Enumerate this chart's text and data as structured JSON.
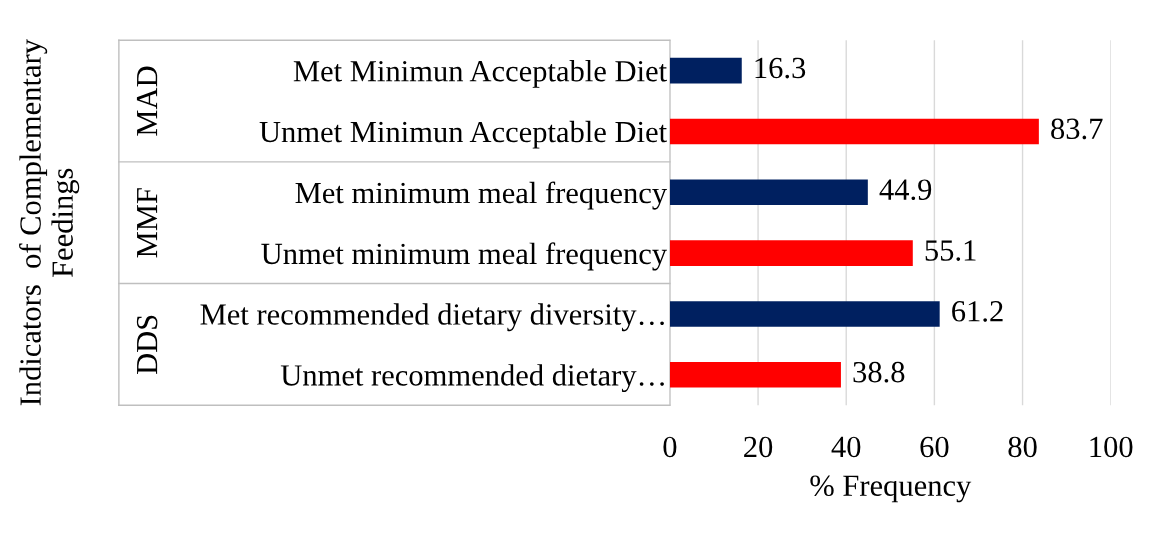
{
  "chart_data": {
    "type": "bar",
    "orientation": "horizontal",
    "xlabel": "% Frequency",
    "ylabel": "Indicators  of Complementary\nFeedings",
    "categories": [
      "Met Minimun Acceptable Diet",
      "Unmet Minimun Acceptable Diet",
      "Met minimum meal frequency",
      "Unmet minimum meal frequency",
      "Met recommended dietary diversity…",
      "Unmet recommended dietary…"
    ],
    "values": [
      16.3,
      83.7,
      44.9,
      55.1,
      61.2,
      38.8
    ],
    "colors": [
      "#002060",
      "#ff0000",
      "#002060",
      "#ff0000",
      "#002060",
      "#ff0000"
    ],
    "annotations": [
      "MAD",
      "MMF",
      "DDS"
    ],
    "xlim": [
      0,
      100
    ],
    "xticks": [
      0,
      20,
      40,
      60,
      80,
      100
    ],
    "grid": "x",
    "data_labels": true
  }
}
